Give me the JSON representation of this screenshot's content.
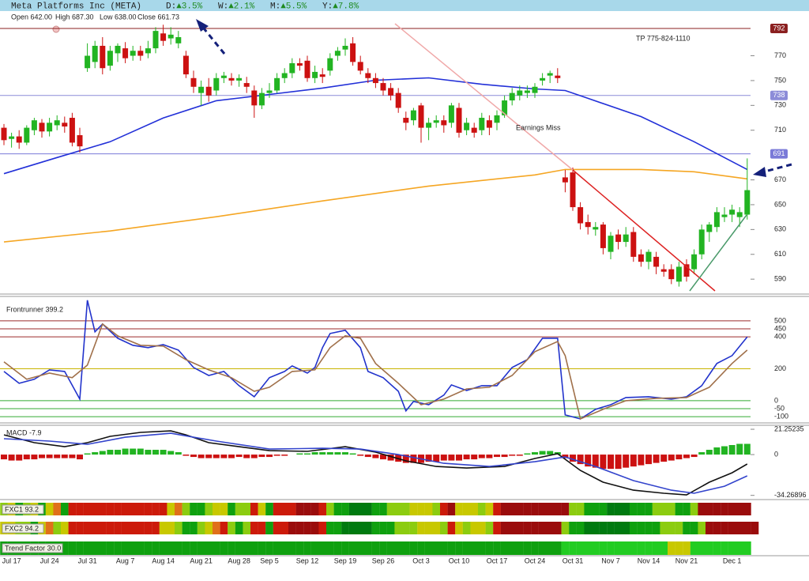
{
  "header": {
    "title": "Meta Platforms Inc (META)",
    "changes": [
      {
        "label": "D:",
        "value": "▲3.5%"
      },
      {
        "label": "W:",
        "value": "▲2.1%"
      },
      {
        "label": "M:",
        "value": "▲5.5%"
      },
      {
        "label": "Y:",
        "value": "▲7.8%"
      }
    ],
    "quote": [
      "Open 642.00",
      "High 687.30",
      "Low 638.00",
      "Close 661.73"
    ]
  },
  "chart_data": [
    {
      "type": "candlestick",
      "categories": [
        null,
        "Jul 17",
        null,
        null,
        null,
        null,
        "Jul 24",
        null,
        null,
        null,
        null,
        "Jul 31",
        null,
        null,
        null,
        null,
        "Aug 7",
        null,
        null,
        null,
        null,
        "Aug 14",
        null,
        null,
        null,
        null,
        "Aug 21",
        null,
        null,
        null,
        null,
        "Aug 28",
        null,
        null,
        null,
        "Sep 5",
        null,
        null,
        null,
        null,
        "Sep 12",
        null,
        null,
        null,
        null,
        "Sep 19",
        null,
        null,
        null,
        null,
        "Sep 26",
        null,
        null,
        null,
        null,
        "Oct 3",
        null,
        null,
        null,
        null,
        "Oct 10",
        null,
        null,
        null,
        null,
        "Oct 17",
        null,
        null,
        null,
        null,
        "Oct 24",
        null,
        null,
        null,
        null,
        "Oct 31",
        null,
        null,
        null,
        null,
        "Nov 7",
        null,
        null,
        null,
        null,
        "Nov 14",
        null,
        null,
        null,
        null,
        "Nov 21",
        null,
        null,
        null,
        null,
        null,
        "Dec 1",
        null,
        null
      ],
      "open": [
        712,
        703,
        705,
        700,
        710,
        716,
        709,
        714,
        716,
        720,
        706,
        760,
        765,
        778,
        762,
        772,
        776,
        770,
        774,
        772,
        776,
        788,
        784,
        780,
        770,
        752,
        740,
        745,
        742,
        752,
        752,
        750,
        748,
        742,
        730,
        740,
        742,
        752,
        756,
        764,
        766,
        752,
        755,
        758,
        770,
        775,
        780,
        765,
        756,
        752,
        748,
        744,
        740,
        720,
        718,
        730,
        712,
        716,
        718,
        716,
        728,
        710,
        712,
        710,
        718,
        716,
        722,
        734,
        738,
        740,
        740,
        750,
        754,
        754,
        672,
        676,
        648,
        636,
        630,
        634,
        612,
        626,
        620,
        628,
        610,
        604,
        608,
        598,
        598,
        588,
        602,
        598,
        610,
        628,
        632,
        640,
        642,
        640,
        642
      ],
      "high": [
        715,
        708,
        710,
        714,
        720,
        719,
        720,
        722,
        721,
        724,
        712,
        780,
        782,
        785,
        778,
        780,
        781,
        778,
        778,
        782,
        793,
        795,
        793,
        790,
        774,
        758,
        750,
        752,
        756,
        757,
        756,
        755,
        753,
        746,
        744,
        748,
        756,
        760,
        768,
        768,
        770,
        762,
        760,
        772,
        777,
        784,
        785,
        770,
        760,
        756,
        752,
        748,
        744,
        725,
        728,
        732,
        720,
        722,
        722,
        732,
        732,
        720,
        716,
        724,
        722,
        726,
        738,
        744,
        746,
        746,
        748,
        756,
        758,
        760,
        678,
        680,
        652,
        642,
        636,
        636,
        628,
        630,
        632,
        632,
        614,
        614,
        612,
        602,
        602,
        604,
        606,
        614,
        634,
        636,
        648,
        648,
        650,
        648,
        687.3
      ],
      "low": [
        698,
        696,
        695,
        698,
        706,
        704,
        705,
        710,
        708,
        697,
        692,
        757,
        760,
        755,
        758,
        765,
        764,
        766,
        766,
        768,
        772,
        778,
        779,
        776,
        752,
        740,
        730,
        733,
        738,
        748,
        746,
        745,
        740,
        720,
        727,
        736,
        740,
        748,
        752,
        758,
        749,
        748,
        748,
        754,
        766,
        770,
        762,
        755,
        748,
        744,
        738,
        734,
        724,
        710,
        714,
        700,
        702,
        712,
        708,
        712,
        704,
        706,
        704,
        706,
        706,
        710,
        720,
        730,
        734,
        736,
        736,
        746,
        748,
        748,
        660,
        645,
        630,
        626,
        625,
        610,
        606,
        614,
        616,
        604,
        600,
        598,
        594,
        592,
        586,
        584,
        588,
        594,
        606,
        620,
        628,
        636,
        636,
        632,
        638
      ],
      "close": [
        702,
        705,
        700,
        712,
        718,
        709,
        716,
        718,
        713,
        700,
        697,
        770,
        778,
        760,
        774,
        778,
        768,
        774,
        770,
        776,
        790,
        782,
        787,
        785,
        755,
        745,
        745,
        738,
        752,
        754,
        750,
        752,
        745,
        730,
        740,
        742,
        752,
        756,
        764,
        762,
        752,
        757,
        753,
        768,
        774,
        778,
        765,
        758,
        752,
        748,
        742,
        738,
        728,
        716,
        726,
        712,
        716,
        718,
        714,
        730,
        708,
        716,
        708,
        720,
        712,
        722,
        734,
        740,
        742,
        742,
        745,
        752,
        756,
        752,
        668,
        648,
        635,
        632,
        632,
        615,
        625,
        620,
        626,
        608,
        604,
        612,
        600,
        596,
        590,
        600,
        592,
        610,
        630,
        634,
        644,
        642,
        646,
        644,
        661.73
      ],
      "up_color": "#22b422",
      "down_color": "#cc1111",
      "ylim": [
        578,
        806
      ],
      "yticks": [
        590,
        610,
        630,
        650,
        670,
        710,
        730,
        750,
        770
      ],
      "levels": [
        {
          "value": 792,
          "color": "#8b2020"
        },
        {
          "value": 738,
          "color": "#8c8cd8"
        },
        {
          "value": 691,
          "color": "#7a7ad8"
        }
      ],
      "moving_averages": [
        {
          "color": "#2230d8",
          "x": [
            0,
            7,
            14,
            21,
            28,
            35,
            42,
            49,
            56,
            63,
            70,
            74,
            77,
            84,
            91,
            98
          ],
          "values": [
            675,
            688,
            700.7,
            719.8,
            733.8,
            738.8,
            744,
            750.3,
            752.2,
            747,
            743.3,
            742,
            735.7,
            721,
            700.7,
            678.4
          ]
        },
        {
          "color": "#f5a623",
          "x": [
            0,
            14,
            28,
            42,
            56,
            70,
            74,
            84,
            91,
            98
          ],
          "values": [
            620,
            628.8,
            640.3,
            653,
            665,
            674,
            678.4,
            678.4,
            676.5,
            670.8
          ]
        }
      ],
      "annotations": [
        "TP 775-824-1110",
        "Earnings Miss"
      ]
    },
    {
      "type": "line",
      "title": "Frontrunner 399.2",
      "ylim": [
        -139,
        653
      ],
      "yticks": [
        -100,
        -50,
        0,
        200,
        400,
        450,
        500
      ],
      "grid_colors": [
        "#33aa33",
        "#33aa33",
        "#33aa33",
        "#c8b400",
        "#9b2a2a",
        "#9b2a2a",
        "#9b2a2a"
      ],
      "series": [
        {
          "color": "#2233cc",
          "x": [
            0,
            2,
            4,
            6,
            8,
            10,
            11,
            12,
            13,
            15,
            17,
            19,
            21,
            23,
            25,
            27,
            29,
            31,
            33,
            35,
            37,
            38,
            40,
            41,
            42,
            43,
            45,
            47,
            48,
            50,
            52,
            53,
            54,
            56,
            58,
            59,
            61,
            63,
            65,
            67,
            69,
            71,
            73,
            74,
            76,
            78,
            80,
            82,
            85,
            88,
            90,
            92,
            94,
            96,
            98
          ],
          "values": [
            183,
            109,
            134,
            193,
            183,
            10,
            629,
            431,
            480,
            391,
            347,
            332,
            351,
            317,
            208,
            158,
            183,
            94,
            25,
            144,
            183,
            218,
            173,
            208,
            332,
            421,
            441,
            332,
            183,
            144,
            59,
            -64,
            -5,
            -25,
            35,
            99,
            64,
            94,
            94,
            208,
            257,
            391,
            391,
            -89,
            -114,
            -54,
            -25,
            20,
            25,
            10,
            25,
            94,
            233,
            282,
            399.2
          ]
        },
        {
          "color": "#a0704a",
          "x": [
            0,
            3,
            6,
            9,
            11,
            13,
            15,
            18,
            21,
            24,
            27,
            30,
            33,
            35,
            38,
            41,
            43,
            45,
            47,
            49,
            52,
            55,
            58,
            61,
            64,
            67,
            70,
            73,
            74,
            76,
            79,
            82,
            86,
            90,
            93,
            96,
            98
          ],
          "values": [
            243,
            134,
            173,
            144,
            223,
            480,
            406,
            347,
            342,
            257,
            193,
            144,
            59,
            84,
            183,
            193,
            332,
            406,
            391,
            233,
            109,
            -25,
            10,
            74,
            84,
            158,
            307,
            371,
            282,
            -114,
            -54,
            0,
            15,
            20,
            84,
            233,
            317
          ]
        }
      ]
    },
    {
      "type": "macd",
      "title": "MACD -7.9",
      "ylim": [
        -37.8,
        24.6
      ],
      "yticks": [
        21.25235,
        0,
        -34.26896
      ],
      "histogram": [
        -4,
        -5,
        -5,
        -4,
        -4,
        -3,
        -3,
        -3,
        -3,
        -3,
        -4,
        1,
        2,
        3,
        4,
        4,
        5,
        5,
        5,
        4,
        4,
        4,
        3,
        2,
        -1,
        -2,
        -3,
        -3,
        -3,
        -3,
        -3,
        -2,
        -3,
        -3,
        -2,
        -2,
        -1,
        -1,
        0,
        1,
        1,
        2,
        2,
        2,
        2,
        2,
        1,
        -1,
        -2,
        -3,
        -4,
        -5,
        -6,
        -7,
        -7,
        -7,
        -6,
        -6,
        -5,
        -5,
        -5,
        -4,
        -4,
        -3,
        -3,
        -2,
        -2,
        -1,
        -1,
        1,
        2,
        3,
        3,
        2,
        -3,
        -6,
        -8,
        -10,
        -11,
        -12,
        -12,
        -12,
        -11,
        -10,
        -9,
        -8,
        -7,
        -6,
        -5,
        -4,
        -3,
        -2,
        2,
        4,
        6,
        7,
        8,
        9,
        9
      ],
      "pos_color": "#22b422",
      "neg_color": "#cc1111",
      "series": [
        {
          "color": "#111111",
          "x": [
            0,
            4,
            8,
            11,
            14,
            18,
            22,
            24,
            27,
            31,
            35,
            40,
            45,
            49,
            53,
            57,
            61,
            66,
            70,
            73,
            76,
            79,
            83,
            87,
            90,
            93,
            96,
            98
          ],
          "values": [
            16.6,
            10,
            6.6,
            10,
            15.3,
            18.6,
            19.9,
            16.6,
            10,
            6.6,
            3.3,
            2.7,
            6.6,
            2,
            -5.3,
            -10,
            -11.3,
            -10,
            -3.3,
            0.7,
            -13.3,
            -23.2,
            -29.9,
            -32.5,
            -33.9,
            -23.2,
            -15.3,
            -7.9
          ]
        },
        {
          "color": "#3344cc",
          "x": [
            0,
            6,
            11,
            16,
            22,
            28,
            35,
            42,
            47,
            52,
            58,
            64,
            70,
            74,
            78,
            83,
            88,
            91,
            95,
            98
          ],
          "values": [
            13.3,
            11.3,
            8.6,
            14.6,
            17.9,
            11.3,
            4.6,
            5.3,
            4.6,
            0,
            -7.3,
            -10,
            -6,
            -2,
            -10,
            -21.9,
            -29.9,
            -32.5,
            -26.6,
            -17.9
          ]
        }
      ]
    },
    {
      "type": "heatmap",
      "palette": {
        "R": "#9a0c0c",
        "r": "#cc1a0a",
        "o": "#e0701a",
        "y": "#c8c800",
        "l": "#8ccc10",
        "G": "#0fa00f",
        "g": "#22cc22",
        "d": "#007a10"
      },
      "rows": [
        {
          "label": "FXC1 93.2",
          "cells": "lyGlyGyoGrrrrrrrrrrrrryolGGlyyGllryGrrrRRRrlGGdddGGlllyyylrRyyylyrRRRRRRRRRllGGGdddGGGlllGGlRRRRRRR"
        },
        {
          "label": "FXC2 94.2",
          "cells": "yyllGyolyrrrrrrrrrrrryylGGlyorlGlrrGrrRRRRrGGddddGGGlllyyylrylyylrRRRRRRRRlGGddddddGGGGlllGGlRRRRRRR"
        },
        {
          "label": "Trend Factor 30.0",
          "cells": "GGGGGGGGGGGGGGGGGGGGGGGGGGGGGGGGGGGGGGGGGGGGGGGGGGGGGGGGGGGGGGGGGGGGGGGGGGggggggggggggggyyygggggggg"
        }
      ]
    }
  ]
}
